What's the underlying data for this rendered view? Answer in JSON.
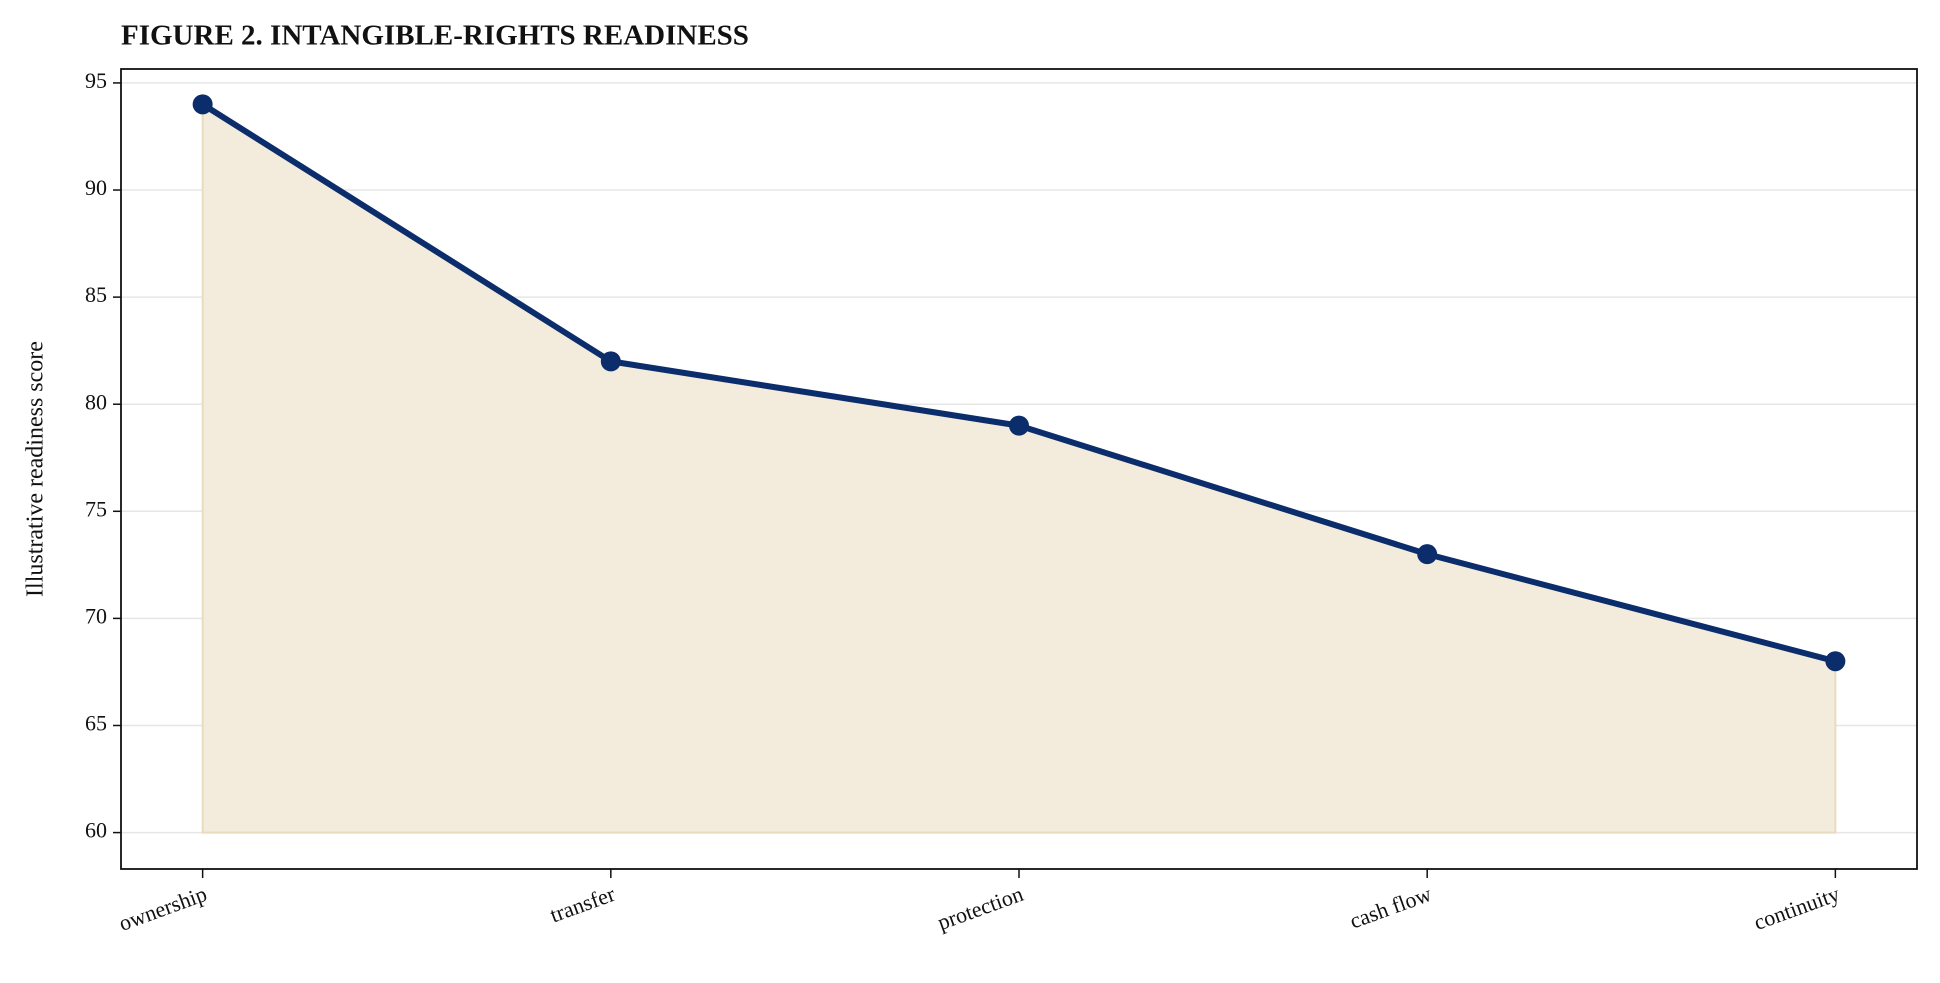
{
  "chart_data": {
    "type": "area-line",
    "title": "FIGURE 2. INTANGIBLE-RIGHTS READINESS",
    "y_label": "Illustrative readiness score",
    "categories": [
      "ownership",
      "transfer",
      "protection",
      "cash flow",
      "continuity"
    ],
    "values": [
      94,
      82,
      79,
      73,
      68
    ],
    "color": "#0b2d6b",
    "fill_color": "#f3ebdb",
    "fill_baseline": 60,
    "ylim": [
      58.3,
      95.65
    ],
    "yticks": [
      60,
      65,
      70,
      75,
      80,
      85,
      90,
      95
    ],
    "grid": true
  }
}
